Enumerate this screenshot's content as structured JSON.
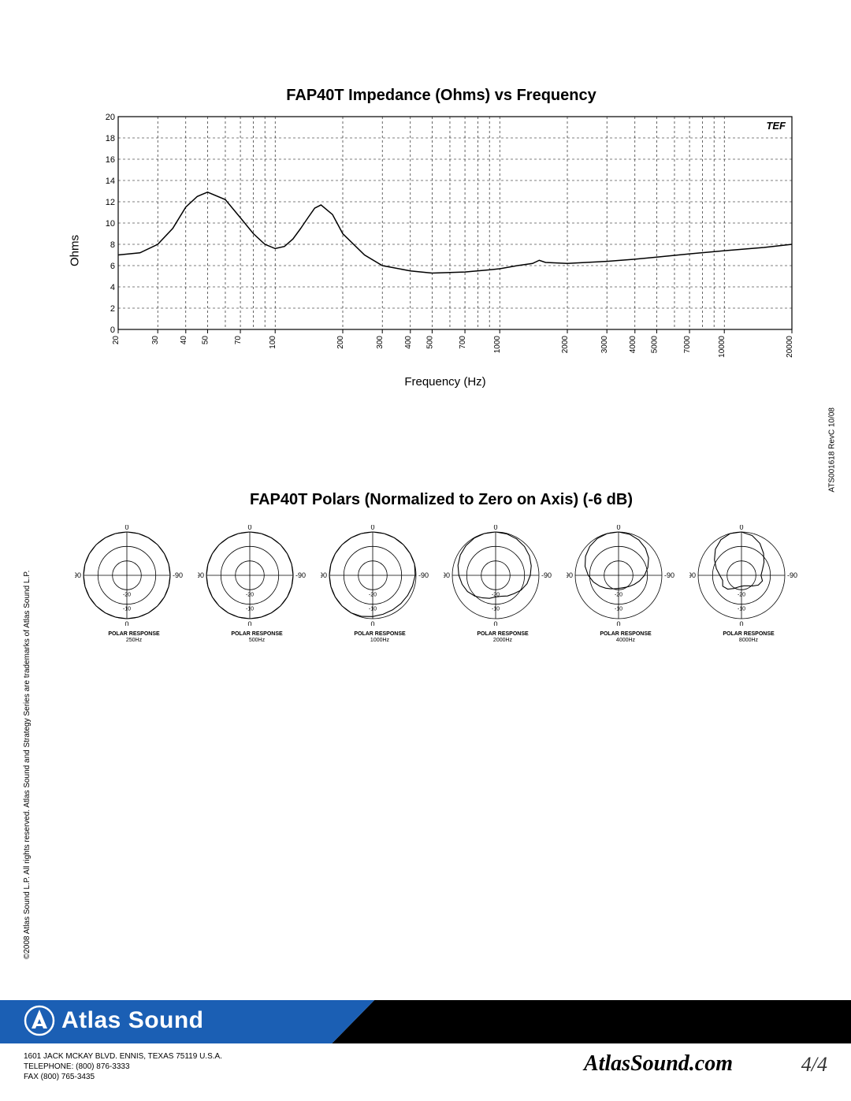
{
  "chart1": {
    "title": "FAP40T Impedance (Ohms) vs Frequency",
    "ylabel": "Ohms",
    "xlabel": "Frequency (Hz)",
    "type": "line",
    "ylim": [
      0,
      20
    ],
    "ytick_step": 2,
    "yticks": [
      0,
      2,
      4,
      6,
      8,
      10,
      12,
      14,
      16,
      18,
      20
    ],
    "xscale": "log",
    "xlim": [
      20,
      20000
    ],
    "xticks": [
      20,
      30,
      40,
      50,
      70,
      100,
      200,
      300,
      400,
      500,
      700,
      1000,
      2000,
      3000,
      4000,
      5000,
      7000,
      10000,
      20000
    ],
    "background_color": "#ffffff",
    "grid_color": "#000000",
    "grid_dash": "3,3",
    "line_color": "#000000",
    "line_width": 1.5,
    "data": [
      [
        20,
        7.0
      ],
      [
        25,
        7.2
      ],
      [
        30,
        8.0
      ],
      [
        35,
        9.5
      ],
      [
        40,
        11.5
      ],
      [
        45,
        12.5
      ],
      [
        50,
        12.9
      ],
      [
        60,
        12.2
      ],
      [
        70,
        10.5
      ],
      [
        80,
        9.0
      ],
      [
        90,
        8.0
      ],
      [
        100,
        7.6
      ],
      [
        110,
        7.8
      ],
      [
        120,
        8.5
      ],
      [
        130,
        9.5
      ],
      [
        140,
        10.5
      ],
      [
        150,
        11.4
      ],
      [
        160,
        11.7
      ],
      [
        180,
        10.8
      ],
      [
        200,
        9.0
      ],
      [
        250,
        7.0
      ],
      [
        300,
        6.0
      ],
      [
        400,
        5.5
      ],
      [
        500,
        5.3
      ],
      [
        700,
        5.4
      ],
      [
        900,
        5.6
      ],
      [
        1000,
        5.7
      ],
      [
        1200,
        6.0
      ],
      [
        1400,
        6.2
      ],
      [
        1500,
        6.5
      ],
      [
        1600,
        6.3
      ],
      [
        2000,
        6.2
      ],
      [
        3000,
        6.4
      ],
      [
        4000,
        6.6
      ],
      [
        5000,
        6.8
      ],
      [
        7000,
        7.1
      ],
      [
        10000,
        7.4
      ],
      [
        15000,
        7.7
      ],
      [
        20000,
        8.0
      ]
    ]
  },
  "chart2": {
    "title": "FAP40T Polars (Normalized to Zero on Axis) (-6 dB)",
    "type": "polar",
    "axis_labels_deg": [
      "0",
      "-90",
      "-90"
    ],
    "ring_labels": [
      "-20",
      "-10",
      "0"
    ],
    "line_color": "#000000",
    "caption": "POLAR RESPONSE",
    "items": [
      {
        "freq_label": "250Hz",
        "shape": [
          1,
          1,
          1,
          1,
          1,
          1,
          1,
          1,
          1,
          1,
          1,
          1,
          1,
          1,
          1,
          1,
          1,
          1,
          1,
          1,
          1,
          1,
          1,
          1
        ]
      },
      {
        "freq_label": "500Hz",
        "shape": [
          1,
          1,
          1,
          1,
          1,
          1,
          1,
          1,
          1,
          1,
          1,
          1,
          1,
          1,
          1,
          1,
          1,
          1,
          1,
          1,
          1,
          1,
          1,
          1
        ]
      },
      {
        "freq_label": "1000Hz",
        "shape": [
          1,
          1,
          1,
          1,
          1,
          1,
          0.98,
          0.95,
          0.93,
          0.92,
          0.92,
          0.93,
          0.95,
          0.98,
          1,
          1,
          1,
          1,
          1,
          1,
          1,
          1,
          1,
          1
        ]
      },
      {
        "freq_label": "2000Hz",
        "shape": [
          1,
          0.99,
          0.97,
          0.94,
          0.9,
          0.85,
          0.8,
          0.75,
          0.68,
          0.6,
          0.55,
          0.5,
          0.5,
          0.55,
          0.6,
          0.68,
          0.75,
          0.8,
          0.85,
          0.9,
          0.94,
          0.97,
          0.99,
          1
        ]
      },
      {
        "freq_label": "4000Hz",
        "shape": [
          1,
          0.98,
          0.94,
          0.88,
          0.8,
          0.7,
          0.6,
          0.5,
          0.42,
          0.36,
          0.32,
          0.3,
          0.3,
          0.32,
          0.36,
          0.42,
          0.5,
          0.6,
          0.7,
          0.8,
          0.88,
          0.94,
          0.98,
          1
        ]
      },
      {
        "freq_label": "8000Hz",
        "shape": [
          1,
          0.95,
          0.85,
          0.72,
          0.6,
          0.5,
          0.45,
          0.5,
          0.45,
          0.35,
          0.28,
          0.25,
          0.25,
          0.28,
          0.35,
          0.45,
          0.5,
          0.45,
          0.5,
          0.6,
          0.72,
          0.85,
          0.95,
          1
        ]
      }
    ]
  },
  "side_text": {
    "copyright": "©2008 Atlas Sound L.P. All rights reserved. Atlas Sound and Strategy Series are trademarks of Atlas Sound L.P.",
    "docid": "ATS001618 RevC 10/08"
  },
  "footer": {
    "brand": "Atlas Sound",
    "address_line1": "1601 JACK MCKAY BLVD. ENNIS, TEXAS 75119  U.S.A.",
    "address_line2": "TELEPHONE: (800) 876-3333",
    "address_line3": "FAX (800) 765-3435",
    "url": "AtlasSound.com",
    "page": "4/4",
    "brand_color": "#1b5fb4"
  }
}
